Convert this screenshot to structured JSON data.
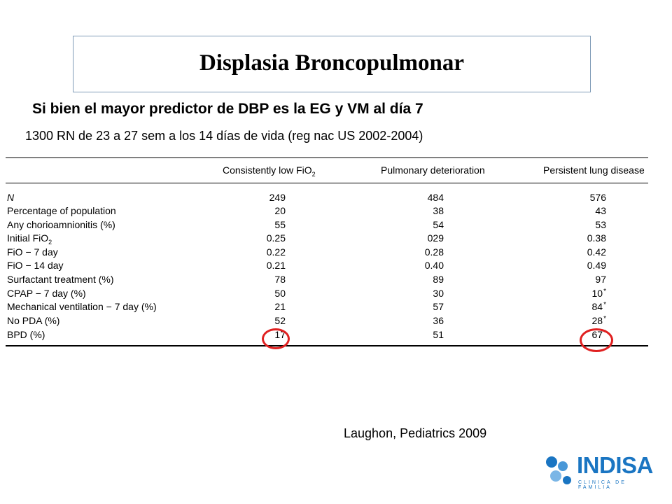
{
  "slide": {
    "title": "Displasia Broncopulmonar",
    "subtitle": "Si bien el mayor predictor de DBP es la EG y VM al día 7",
    "study": "1300 RN de 23 a 27 sem a los 14 días de vida (reg nac US 2002-2004)",
    "citation": "Laughon, Pediatrics 2009"
  },
  "table": {
    "headers": [
      "Consistently low FiO",
      "Pulmonary deterioration",
      "Persistent lung disease"
    ],
    "rows": [
      {
        "label": "N",
        "values": [
          "249",
          "484",
          "576"
        ]
      },
      {
        "label": "Percentage of population",
        "values": [
          "20",
          "38",
          "43"
        ]
      },
      {
        "label": "Any chorioamnionitis (%)",
        "values": [
          "55",
          "54",
          "53"
        ]
      },
      {
        "label": "Initial FiO",
        "values": [
          "0.25",
          "029",
          "0.38"
        ]
      },
      {
        "label": "FiO  − 7 day",
        "values": [
          "0.22",
          "0.28",
          "0.42"
        ]
      },
      {
        "label": "FiO  − 14 day",
        "values": [
          "0.21",
          "0.40",
          "0.49"
        ]
      },
      {
        "label": "Surfactant treatment (%)",
        "values": [
          "78",
          "89",
          "97"
        ]
      },
      {
        "label": "CPAP − 7 day (%)",
        "values": [
          "50",
          "30",
          "10"
        ]
      },
      {
        "label": "Mechanical ventilation − 7 day (%)",
        "values": [
          "21",
          "57",
          "84"
        ]
      },
      {
        "label": "No PDA (%)",
        "values": [
          "52",
          "36",
          "28"
        ]
      },
      {
        "label": "BPD (%)",
        "values": [
          "17",
          "51",
          "67"
        ]
      }
    ],
    "footnote_mark": "*",
    "subscript": "2"
  },
  "logo": {
    "brand": "INDISA",
    "tagline": "CLINICA DE FAMILIA"
  },
  "colors": {
    "highlight": "#e02020",
    "brand": "#1a75c2",
    "title_border": "#7f9bb7"
  }
}
